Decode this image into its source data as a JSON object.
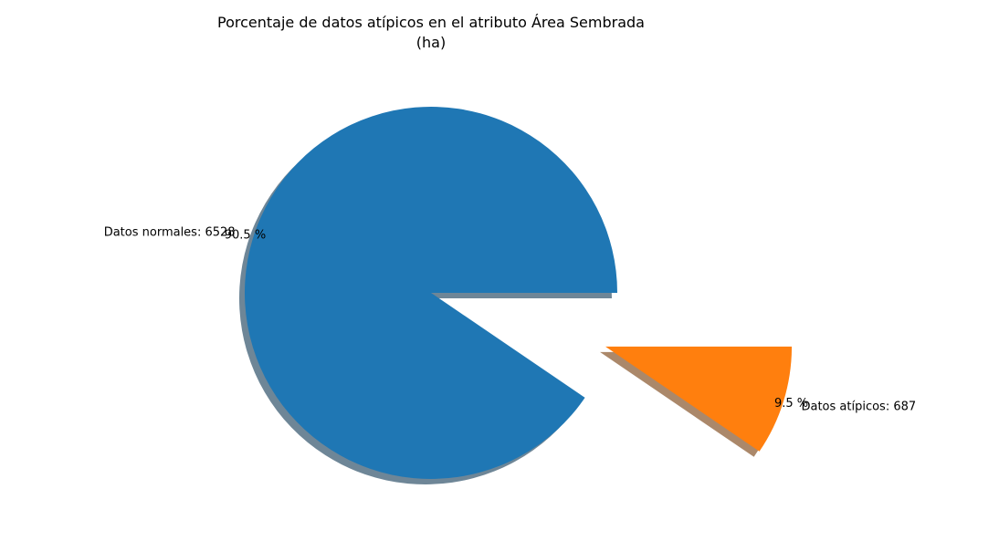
{
  "chart_data": {
    "type": "pie",
    "title": "Porcentaje de datos atípicos en el atributo Área Sembrada\n(ha)",
    "slices": [
      {
        "label": "Datos normales: 6528",
        "value": 6528,
        "pct_label": "90.5 %",
        "color": "#1f77b4",
        "explode": 0.0
      },
      {
        "label": "Datos atípicos: 687",
        "value": 687,
        "pct_label": "9.5 %",
        "color": "#ff7f0e",
        "explode": 1.0
      }
    ],
    "start_angle": 0,
    "shadow": true,
    "legend": "none"
  }
}
